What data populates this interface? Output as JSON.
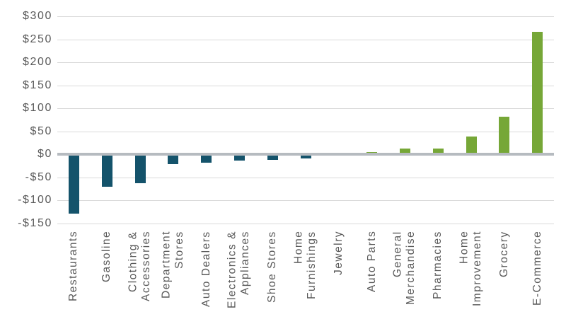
{
  "chart_data": {
    "type": "bar",
    "title": "",
    "xlabel": "",
    "ylabel": "",
    "grid": true,
    "legend": false,
    "ylim": [
      -150,
      300
    ],
    "y_tick_step": 50,
    "y_ticks": [
      {
        "label": "$300",
        "value": 300
      },
      {
        "label": "$250",
        "value": 250
      },
      {
        "label": "$200",
        "value": 200
      },
      {
        "label": "$150",
        "value": 150
      },
      {
        "label": "$100",
        "value": 100
      },
      {
        "label": "$50",
        "value": 50
      },
      {
        "label": "$0",
        "value": 0
      },
      {
        "label": "-$50",
        "value": -50
      },
      {
        "label": "-$100",
        "value": -100
      },
      {
        "label": "-$150",
        "value": -150
      }
    ],
    "categories": [
      "Restaurants",
      "Gasoline",
      "Clothing & Accessories",
      "Department Stores",
      "Auto Dealers",
      "Electronics & Appliances",
      "Shoe Stores",
      "Home Furnishings",
      "Jewelry",
      "Auto Parts",
      "General Merchandise",
      "Pharmacies",
      "Home Improvement",
      "Grocery",
      "E-Commerce"
    ],
    "category_label_lines": [
      [
        "Restaurants"
      ],
      [
        "Gasoline"
      ],
      [
        "Clothing &",
        "Accessories"
      ],
      [
        "Department",
        "Stores"
      ],
      [
        "Auto Dealers"
      ],
      [
        "Electronics &",
        "Appliances"
      ],
      [
        "Shoe Stores"
      ],
      [
        "Home",
        "Furnishings"
      ],
      [
        "Jewelry"
      ],
      [
        "Auto Parts"
      ],
      [
        "General",
        "Merchandise"
      ],
      [
        "Pharmacies"
      ],
      [
        "Home",
        "Improvement"
      ],
      [
        "Grocery"
      ],
      [
        "E-Commerce"
      ]
    ],
    "values": [
      -129,
      -70,
      -63,
      -21,
      -19,
      -14,
      -12,
      -9,
      0,
      4,
      13,
      12,
      39,
      82,
      266
    ],
    "colors": {
      "positive_bar": "#76a737",
      "negative_bar": "#14536b",
      "gridline": "#d9d9d9",
      "zero_line": "#b6bbc0",
      "axis_text": "#595959",
      "background": "#ffffff"
    }
  }
}
